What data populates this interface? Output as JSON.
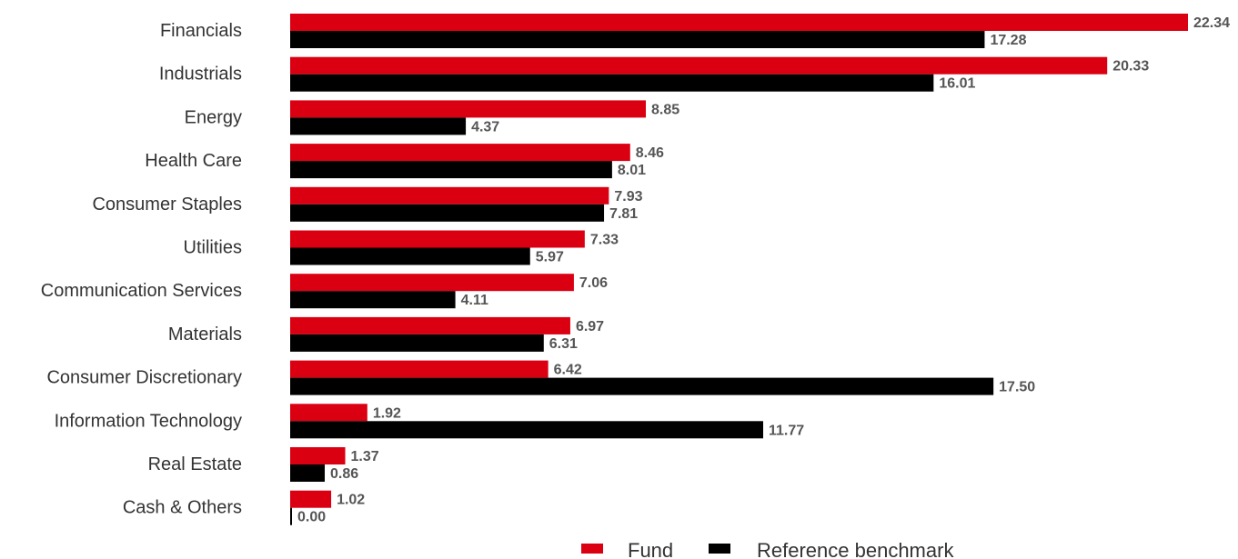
{
  "chart_data": {
    "type": "bar",
    "orientation": "horizontal",
    "categories": [
      "Financials",
      "Industrials",
      "Energy",
      "Health Care",
      "Consumer Staples",
      "Utilities",
      "Communication Services",
      "Materials",
      "Consumer Discretionary",
      "Information Technology",
      "Real Estate",
      "Cash & Others"
    ],
    "series": [
      {
        "name": "Fund",
        "color": "#db0011",
        "values": [
          22.34,
          20.33,
          8.85,
          8.46,
          7.93,
          7.33,
          7.06,
          6.97,
          6.42,
          1.92,
          1.37,
          1.02
        ],
        "labels": [
          "22.34",
          "20.33",
          "8.85",
          "8.46",
          "7.93",
          "7.33",
          "7.06",
          "6.97",
          "6.42",
          "1.92",
          "1.37",
          "1.02"
        ]
      },
      {
        "name": "Reference benchmark",
        "color": "#000000",
        "values": [
          17.28,
          16.01,
          4.37,
          8.01,
          7.81,
          5.97,
          4.11,
          6.31,
          17.5,
          11.77,
          0.86,
          0.0
        ],
        "labels": [
          "17.28",
          "16.01",
          "4.37",
          "8.01",
          "7.81",
          "5.97",
          "4.11",
          "6.31",
          "17.50",
          "11.77",
          "0.86",
          "0.00"
        ]
      }
    ],
    "xlim": [
      0,
      22.34
    ],
    "grid": false,
    "legend_position": "bottom"
  }
}
